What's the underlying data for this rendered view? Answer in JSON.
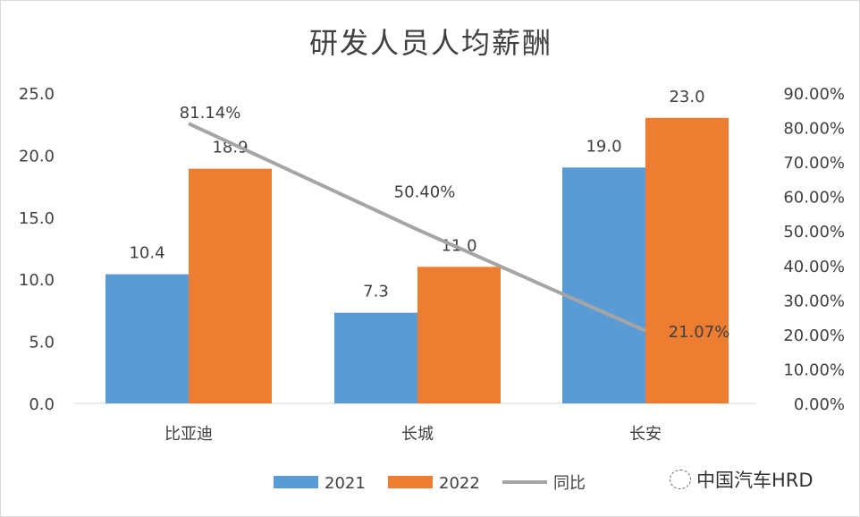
{
  "chart_data": {
    "type": "bar",
    "title": "研发人员人均薪酬",
    "categories": [
      "比亚迪",
      "长城",
      "长安"
    ],
    "series": [
      {
        "name": "2021",
        "type": "bar",
        "axis": "left",
        "color": "#5b9bd5",
        "values": [
          10.4,
          7.3,
          19.0
        ],
        "labels": [
          "10.4",
          "7.3",
          "19.0"
        ]
      },
      {
        "name": "2022",
        "type": "bar",
        "axis": "left",
        "color": "#ed7d31",
        "values": [
          18.9,
          11.0,
          23.0
        ],
        "labels": [
          "18.9",
          "11.0",
          "23.0"
        ]
      },
      {
        "name": "同比",
        "type": "line",
        "axis": "right",
        "color": "#a5a5a5",
        "values": [
          81.14,
          50.4,
          21.07
        ],
        "labels": [
          "81.14%",
          "50.40%",
          "21.07%"
        ]
      }
    ],
    "ylim": [
      0,
      25
    ],
    "yticks": [
      "0.0",
      "5.0",
      "10.0",
      "15.0",
      "20.0",
      "25.0"
    ],
    "y2lim": [
      0,
      90
    ],
    "y2ticks": [
      "0.00%",
      "10.00%",
      "20.00%",
      "30.00%",
      "40.00%",
      "50.00%",
      "60.00%",
      "70.00%",
      "80.00%",
      "90.00%"
    ],
    "grid": false,
    "legend": "bottom"
  },
  "watermark": "中国汽车HRD"
}
